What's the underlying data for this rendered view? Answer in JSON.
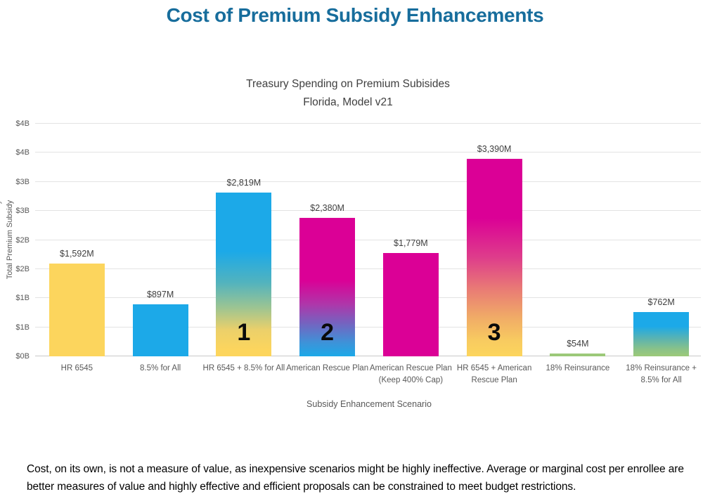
{
  "page": {
    "title": "Cost of Premium Subsidy Enhancements",
    "footnote": "Cost, on its own, is not a measure of value, as inexpensive scenarios might be highly ineffective.  Average or marginal cost per enrollee are better measures of value and highly effective and efficient proposals can be constrained to meet budget restrictions."
  },
  "colors": {
    "title_text": "#176D9C",
    "subtitle_text": "#3F3F3F",
    "axis_text": "#595959",
    "value_label_text": "#3F3F3F",
    "gridline": "#E3E3E3",
    "bar_yellow": "#FCD55D",
    "bar_cyan": "#1CA9E8",
    "bar_magenta": "#DB0096",
    "bar_green": "#9CC979"
  },
  "chart_data": {
    "type": "bar",
    "title": "Treasury Spending on Premium Subisides",
    "subtitle": "Florida, Model v21",
    "xlabel": "Subsidy Enhancement Scenario",
    "ylabel": "Total Premium Subsidy",
    "ylim_billions": [
      0,
      4
    ],
    "ytick_step_billions": 0.5,
    "grid": true,
    "legend": false,
    "ytick_labels_bottom_to_top": [
      "$0B",
      "$1B",
      "$1B",
      "$2B",
      "$2B",
      "$3B",
      "$3B",
      "$4B",
      "$4B"
    ],
    "categories": [
      "HR 6545",
      "8.5% for All",
      "HR 6545 + 8.5% for All",
      "American Rescue Plan",
      "American Rescue Plan (Keep 400% Cap)",
      "HR 6545 + American Rescue Plan",
      "18% Reinsurance",
      "18% Reinsurance + 8.5% for All"
    ],
    "values_millions": [
      1592,
      897,
      2819,
      2380,
      1779,
      3390,
      54,
      762
    ],
    "value_labels": [
      "$1,592M",
      "$897M",
      "$2,819M",
      "$2,380M",
      "$1,779M",
      "$3,390M",
      "$54M",
      "$762M"
    ],
    "bar_rank_numbers": [
      "",
      "",
      "1",
      "2",
      "",
      "3",
      "",
      ""
    ],
    "bar_styles": [
      "yellow",
      "cyan",
      "cyan-yellow",
      "magenta-cyan",
      "magenta",
      "magenta-yellow",
      "green",
      "cyan-green"
    ]
  }
}
